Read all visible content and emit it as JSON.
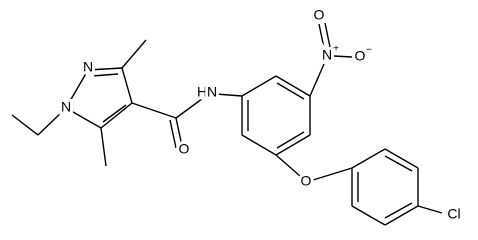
{
  "atoms": [
    {
      "symbol": "N"
    },
    {
      "symbol": "N"
    },
    {
      "symbol": "O"
    },
    {
      "symbol": "H"
    },
    {
      "symbol": "N"
    },
    {
      "symbol": "N",
      "charge": "+"
    },
    {
      "symbol": "O"
    },
    {
      "symbol": "O",
      "charge": "−"
    },
    {
      "symbol": "O"
    },
    {
      "symbol": "Cl"
    }
  ]
}
